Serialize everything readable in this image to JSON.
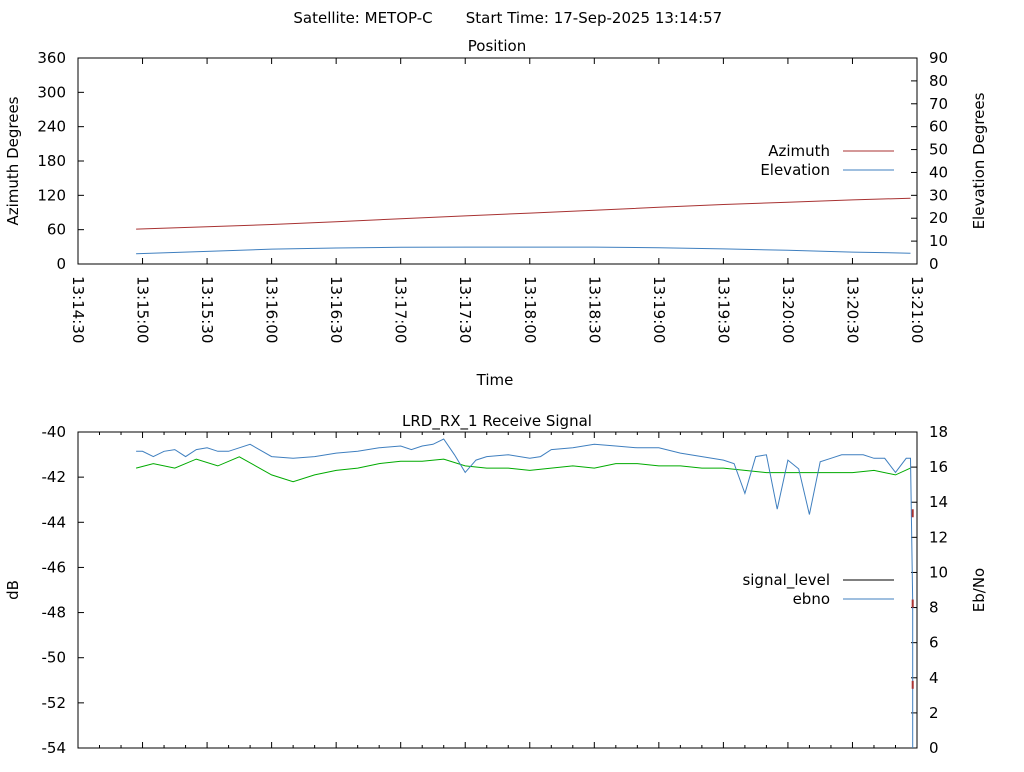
{
  "header": {
    "satellite_label": "Satellite: METOP-C",
    "start_time_label": "Start Time: 17-Sep-2025 13:14:57"
  },
  "colors": {
    "azimuth": "#a83232",
    "elevation": "#3f7fbf",
    "signal_level": "#000000",
    "ebno": "#3f7fbf",
    "signal_trace": "#00aa00",
    "drop_marker": "#a83232"
  },
  "chart_data": [
    {
      "type": "line",
      "title": "Position",
      "xlabel": "Time",
      "ylabel": "Azimuth Degrees",
      "y2label": "Elevation Degrees",
      "xlim": [
        "13:14:30",
        "13:21:00"
      ],
      "ylim": [
        0,
        360
      ],
      "y2lim": [
        0,
        90
      ],
      "x_ticks": [
        "13:14:30",
        "13:15:00",
        "13:15:30",
        "13:16:00",
        "13:16:30",
        "13:17:00",
        "13:17:30",
        "13:18:00",
        "13:18:30",
        "13:19:00",
        "13:19:30",
        "13:20:00",
        "13:20:30",
        "13:21:00"
      ],
      "y_ticks": [
        "0",
        "60",
        "120",
        "180",
        "240",
        "300",
        "360"
      ],
      "y2_ticks": [
        "0",
        "10",
        "20",
        "30",
        "40",
        "50",
        "60",
        "70",
        "80",
        "90"
      ],
      "legend_position": "right",
      "series": [
        {
          "name": "Azimuth",
          "axis": "y",
          "x": [
            "13:14:57",
            "13:15:30",
            "13:16:00",
            "13:16:30",
            "13:17:00",
            "13:17:30",
            "13:18:00",
            "13:18:30",
            "13:19:00",
            "13:19:30",
            "13:20:00",
            "13:20:30",
            "13:20:57"
          ],
          "values": [
            61,
            65,
            69,
            74,
            79,
            84,
            89,
            94,
            99,
            104,
            108,
            112,
            115
          ]
        },
        {
          "name": "Elevation",
          "axis": "y2",
          "x": [
            "13:14:57",
            "13:15:30",
            "13:16:00",
            "13:16:30",
            "13:17:00",
            "13:17:30",
            "13:18:00",
            "13:18:30",
            "13:19:00",
            "13:19:30",
            "13:20:00",
            "13:20:30",
            "13:20:57"
          ],
          "values": [
            4.5,
            5.5,
            6.5,
            7,
            7.3,
            7.4,
            7.4,
            7.4,
            7.1,
            6.6,
            6.0,
            5.2,
            4.7
          ]
        }
      ]
    },
    {
      "type": "line",
      "title": "LRD_RX_1 Receive Signal",
      "xlabel": "",
      "ylabel": "dB",
      "y2label": "Eb/No",
      "xlim": [
        "13:14:30",
        "13:21:00"
      ],
      "ylim": [
        -54,
        -40
      ],
      "y2lim": [
        0,
        18
      ],
      "y_ticks": [
        "-54",
        "-52",
        "-50",
        "-48",
        "-46",
        "-44",
        "-42",
        "-40"
      ],
      "y2_ticks": [
        "0",
        "2",
        "4",
        "6",
        "8",
        "10",
        "12",
        "14",
        "16",
        "18"
      ],
      "legend_position": "right",
      "series": [
        {
          "name": "signal_level",
          "axis": "y",
          "x": [
            "13:20:58",
            "13:20:58",
            "13:20:58"
          ],
          "values": [
            -43.6,
            -47.6,
            -51.2
          ]
        },
        {
          "name": "ebno",
          "axis": "y2",
          "x": [
            "13:14:57",
            "13:15:00",
            "13:15:05",
            "13:15:10",
            "13:15:15",
            "13:15:20",
            "13:15:25",
            "13:15:30",
            "13:15:35",
            "13:15:40",
            "13:15:45",
            "13:15:50",
            "13:16:00",
            "13:16:10",
            "13:16:20",
            "13:16:30",
            "13:16:40",
            "13:16:50",
            "13:17:00",
            "13:17:05",
            "13:17:10",
            "13:17:15",
            "13:17:20",
            "13:17:25",
            "13:17:30",
            "13:17:35",
            "13:17:40",
            "13:17:50",
            "13:18:00",
            "13:18:05",
            "13:18:10",
            "13:18:20",
            "13:18:30",
            "13:18:40",
            "13:18:50",
            "13:19:00",
            "13:19:10",
            "13:19:20",
            "13:19:30",
            "13:19:35",
            "13:19:40",
            "13:19:45",
            "13:19:50",
            "13:19:55",
            "13:20:00",
            "13:20:05",
            "13:20:10",
            "13:20:15",
            "13:20:20",
            "13:20:25",
            "13:20:30",
            "13:20:35",
            "13:20:40",
            "13:20:45",
            "13:20:50",
            "13:20:55",
            "13:20:57",
            "13:20:58",
            "13:20:58"
          ],
          "values": [
            16.9,
            16.9,
            16.6,
            16.9,
            17.0,
            16.6,
            17.0,
            17.1,
            16.9,
            16.9,
            17.1,
            17.3,
            16.6,
            16.5,
            16.6,
            16.8,
            16.9,
            17.1,
            17.2,
            17.0,
            17.2,
            17.3,
            17.6,
            16.7,
            15.7,
            16.4,
            16.6,
            16.7,
            16.5,
            16.6,
            17.0,
            17.1,
            17.3,
            17.2,
            17.1,
            17.1,
            16.8,
            16.6,
            16.4,
            16.2,
            14.5,
            16.6,
            16.7,
            13.6,
            16.4,
            15.9,
            13.3,
            16.3,
            16.5,
            16.7,
            16.7,
            16.7,
            16.5,
            16.5,
            15.7,
            16.5,
            16.5,
            8.3,
            0.0
          ]
        }
      ],
      "unlabeled_trace": {
        "x": [
          "13:14:57",
          "13:15:05",
          "13:15:15",
          "13:15:25",
          "13:15:35",
          "13:15:45",
          "13:16:00",
          "13:16:10",
          "13:16:20",
          "13:16:30",
          "13:16:40",
          "13:16:50",
          "13:17:00",
          "13:17:10",
          "13:17:20",
          "13:17:30",
          "13:17:40",
          "13:17:50",
          "13:18:00",
          "13:18:10",
          "13:18:20",
          "13:18:30",
          "13:18:40",
          "13:18:50",
          "13:19:00",
          "13:19:10",
          "13:19:20",
          "13:19:30",
          "13:19:40",
          "13:19:50",
          "13:20:00",
          "13:20:10",
          "13:20:20",
          "13:20:30",
          "13:20:40",
          "13:20:50",
          "13:20:57"
        ],
        "values": [
          -41.6,
          -41.4,
          -41.6,
          -41.2,
          -41.5,
          -41.1,
          -41.9,
          -42.2,
          -41.9,
          -41.7,
          -41.6,
          -41.4,
          -41.3,
          -41.3,
          -41.2,
          -41.5,
          -41.6,
          -41.6,
          -41.7,
          -41.6,
          -41.5,
          -41.6,
          -41.4,
          -41.4,
          -41.5,
          -41.5,
          -41.6,
          -41.6,
          -41.7,
          -41.8,
          -41.8,
          -41.8,
          -41.8,
          -41.8,
          -41.7,
          -41.9,
          -41.6
        ]
      }
    }
  ]
}
